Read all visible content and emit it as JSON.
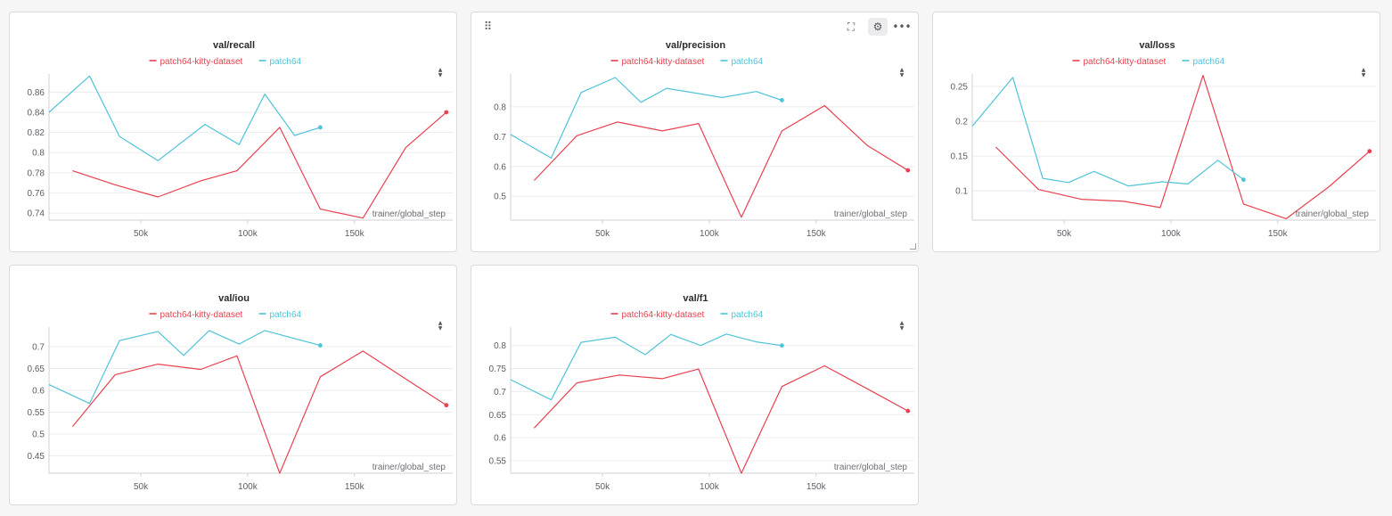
{
  "colors": {
    "patch64-kitty-dataset": "#e8414f",
    "patch64": "#4fc3d9"
  },
  "legend": [
    {
      "name": "patch64-kitty-dataset",
      "color": "#e8414f"
    },
    {
      "name": "patch64",
      "color": "#4fc3d9"
    }
  ],
  "xlabel": "trainer/global_step",
  "xticks": [
    50000,
    100000,
    150000
  ],
  "xtick_labels": [
    "50k",
    "100k",
    "150k"
  ],
  "toolbar_icons": [
    "drag-handle-icon",
    "fullscreen-icon",
    "gear-icon",
    "more-icon"
  ],
  "chart_data": [
    {
      "type": "line",
      "title": "val/recall",
      "xlabel": "trainer/global_step",
      "xlim": [
        7000,
        196000
      ],
      "ylim": [
        0.733,
        0.878
      ],
      "yticks": [
        0.74,
        0.76,
        0.78,
        0.8,
        0.82,
        0.84,
        0.86
      ],
      "ytick_labels": [
        "0.74",
        "0.76",
        "0.78",
        "0.8",
        "0.82",
        "0.84",
        "0.86"
      ],
      "series": [
        {
          "name": "patch64-kitty-dataset",
          "x": [
            18000,
            38000,
            58000,
            78000,
            95000,
            115000,
            134000,
            154000,
            174000,
            193000
          ],
          "y": [
            0.782,
            0.768,
            0.756,
            0.772,
            0.782,
            0.825,
            0.744,
            0.735,
            0.805,
            0.84
          ]
        },
        {
          "name": "patch64",
          "x": [
            7000,
            26000,
            40000,
            58000,
            80000,
            96000,
            108000,
            122000,
            134000
          ],
          "y": [
            0.84,
            0.876,
            0.816,
            0.792,
            0.828,
            0.808,
            0.858,
            0.817,
            0.825
          ]
        }
      ]
    },
    {
      "type": "line",
      "title": "val/precision",
      "xlabel": "trainer/global_step",
      "xlim": [
        7000,
        196000
      ],
      "ylim": [
        0.42,
        0.91
      ],
      "yticks": [
        0.5,
        0.6,
        0.7,
        0.8
      ],
      "ytick_labels": [
        "0.5",
        "0.6",
        "0.7",
        "0.8"
      ],
      "series": [
        {
          "name": "patch64-kitty-dataset",
          "x": [
            18000,
            38000,
            57000,
            78000,
            95000,
            115000,
            134000,
            154000,
            174000,
            193000
          ],
          "y": [
            0.553,
            0.703,
            0.749,
            0.719,
            0.744,
            0.43,
            0.719,
            0.804,
            0.67,
            0.587
          ]
        },
        {
          "name": "patch64",
          "x": [
            7000,
            26000,
            40000,
            56000,
            68000,
            80000,
            106000,
            122000,
            134000
          ],
          "y": [
            0.707,
            0.628,
            0.848,
            0.898,
            0.815,
            0.862,
            0.831,
            0.851,
            0.822
          ]
        }
      ]
    },
    {
      "type": "line",
      "title": "val/loss",
      "xlabel": "trainer/global_step",
      "xlim": [
        7000,
        196000
      ],
      "ylim": [
        0.058,
        0.268
      ],
      "yticks": [
        0.1,
        0.15,
        0.2,
        0.25
      ],
      "ytick_labels": [
        "0.1",
        "0.15",
        "0.2",
        "0.25"
      ],
      "series": [
        {
          "name": "patch64-kitty-dataset",
          "x": [
            18000,
            38000,
            58000,
            78000,
            95000,
            115000,
            134000,
            154000,
            174000,
            193000
          ],
          "y": [
            0.163,
            0.102,
            0.088,
            0.085,
            0.076,
            0.266,
            0.081,
            0.06,
            0.106,
            0.157
          ]
        },
        {
          "name": "patch64",
          "x": [
            7000,
            26000,
            40000,
            52000,
            64000,
            80000,
            96000,
            108000,
            122000,
            134000
          ],
          "y": [
            0.193,
            0.263,
            0.118,
            0.112,
            0.128,
            0.107,
            0.113,
            0.11,
            0.144,
            0.116
          ]
        }
      ]
    },
    {
      "type": "line",
      "title": "val/iou",
      "xlabel": "trainer/global_step",
      "xlim": [
        7000,
        196000
      ],
      "ylim": [
        0.41,
        0.745
      ],
      "yticks": [
        0.45,
        0.5,
        0.55,
        0.6,
        0.65,
        0.7
      ],
      "ytick_labels": [
        "0.45",
        "0.5",
        "0.55",
        "0.6",
        "0.65",
        "0.7"
      ],
      "series": [
        {
          "name": "patch64-kitty-dataset",
          "x": [
            18000,
            38000,
            58000,
            78000,
            95000,
            115000,
            134000,
            154000,
            174000,
            193000
          ],
          "y": [
            0.517,
            0.636,
            0.66,
            0.648,
            0.679,
            0.41,
            0.631,
            0.69,
            0.626,
            0.566
          ]
        },
        {
          "name": "patch64",
          "x": [
            7000,
            26000,
            40000,
            58000,
            70000,
            82000,
            96000,
            108000,
            134000
          ],
          "y": [
            0.613,
            0.57,
            0.714,
            0.735,
            0.68,
            0.737,
            0.706,
            0.737,
            0.703
          ]
        }
      ]
    },
    {
      "type": "line",
      "title": "val/f1",
      "xlabel": "trainer/global_step",
      "xlim": [
        7000,
        196000
      ],
      "ylim": [
        0.523,
        0.84
      ],
      "yticks": [
        0.55,
        0.6,
        0.65,
        0.7,
        0.75,
        0.8
      ],
      "ytick_labels": [
        "0.55",
        "0.6",
        "0.65",
        "0.7",
        "0.75",
        "0.8"
      ],
      "series": [
        {
          "name": "patch64-kitty-dataset",
          "x": [
            18000,
            38000,
            58000,
            78000,
            95000,
            115000,
            134000,
            154000,
            174000,
            193000
          ],
          "y": [
            0.621,
            0.719,
            0.736,
            0.728,
            0.749,
            0.523,
            0.711,
            0.756,
            0.706,
            0.658
          ]
        },
        {
          "name": "patch64",
          "x": [
            7000,
            26000,
            40000,
            56000,
            70000,
            82000,
            96000,
            108000,
            122000,
            134000
          ],
          "y": [
            0.726,
            0.682,
            0.807,
            0.818,
            0.78,
            0.824,
            0.8,
            0.825,
            0.808,
            0.8
          ]
        }
      ]
    }
  ]
}
